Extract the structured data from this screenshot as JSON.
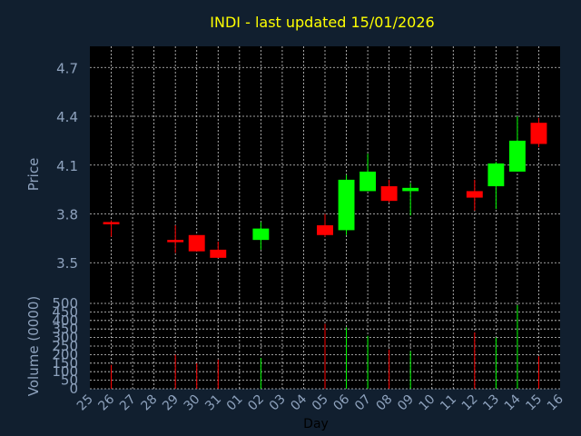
{
  "chart_data": {
    "type": "candlestick",
    "title": "INDI - last updated 15/01/2026",
    "xlabel": "Day",
    "colors": {
      "background": "#111f2f",
      "plot_background": "#000000",
      "grid": "#d0d0d0",
      "up": "#00ff00",
      "down": "#ff0000",
      "title": "#ffff00",
      "axis_text": "#8ea2bd"
    },
    "x_tick_labels": [
      "25",
      "26",
      "27",
      "28",
      "29",
      "30",
      "31",
      "01",
      "02",
      "03",
      "04",
      "05",
      "06",
      "07",
      "08",
      "09",
      "10",
      "11",
      "12",
      "13",
      "14",
      "15",
      "16"
    ],
    "price_panel": {
      "ylabel": "Price",
      "ylim": [
        3.25,
        4.83
      ],
      "ticks": [
        "3.5",
        "3.8",
        "4.1",
        "4.4",
        "4.7"
      ],
      "grid": true
    },
    "volume_panel": {
      "ylabel": "Volume (0000)",
      "ylim": [
        0,
        500
      ],
      "ticks": [
        "0",
        "50",
        "100",
        "150",
        "200",
        "250",
        "300",
        "350",
        "400",
        "450",
        "500"
      ],
      "grid": true
    },
    "candles": [
      {
        "day": "26",
        "open": 3.75,
        "high": 3.76,
        "low": 3.66,
        "close": 3.74,
        "volume": 140
      },
      {
        "day": "29",
        "open": 3.64,
        "high": 3.73,
        "low": 3.56,
        "close": 3.63,
        "volume": 200
      },
      {
        "day": "30",
        "open": 3.67,
        "high": 3.67,
        "low": 3.57,
        "close": 3.57,
        "volume": 150
      },
      {
        "day": "31",
        "open": 3.58,
        "high": 3.63,
        "low": 3.53,
        "close": 3.53,
        "volume": 170
      },
      {
        "day": "02",
        "open": 3.64,
        "high": 3.75,
        "low": 3.58,
        "close": 3.71,
        "volume": 180
      },
      {
        "day": "05",
        "open": 3.73,
        "high": 3.8,
        "low": 3.66,
        "close": 3.67,
        "volume": 380
      },
      {
        "day": "06",
        "open": 3.7,
        "high": 4.04,
        "low": 3.67,
        "close": 4.01,
        "volume": 360
      },
      {
        "day": "07",
        "open": 3.94,
        "high": 4.17,
        "low": 3.94,
        "close": 4.06,
        "volume": 310
      },
      {
        "day": "08",
        "open": 3.97,
        "high": 4.01,
        "low": 3.87,
        "close": 3.88,
        "volume": 230
      },
      {
        "day": "09",
        "open": 3.94,
        "high": 3.99,
        "low": 3.79,
        "close": 3.96,
        "volume": 220
      },
      {
        "day": "12",
        "open": 3.94,
        "high": 4.01,
        "low": 3.82,
        "close": 3.9,
        "volume": 330
      },
      {
        "day": "13",
        "open": 3.97,
        "high": 4.12,
        "low": 3.83,
        "close": 4.11,
        "volume": 300
      },
      {
        "day": "14",
        "open": 4.06,
        "high": 4.4,
        "low": 4.06,
        "close": 4.25,
        "volume": 490
      },
      {
        "day": "15",
        "open": 4.36,
        "high": 4.39,
        "low": 4.21,
        "close": 4.23,
        "volume": 190
      }
    ]
  }
}
